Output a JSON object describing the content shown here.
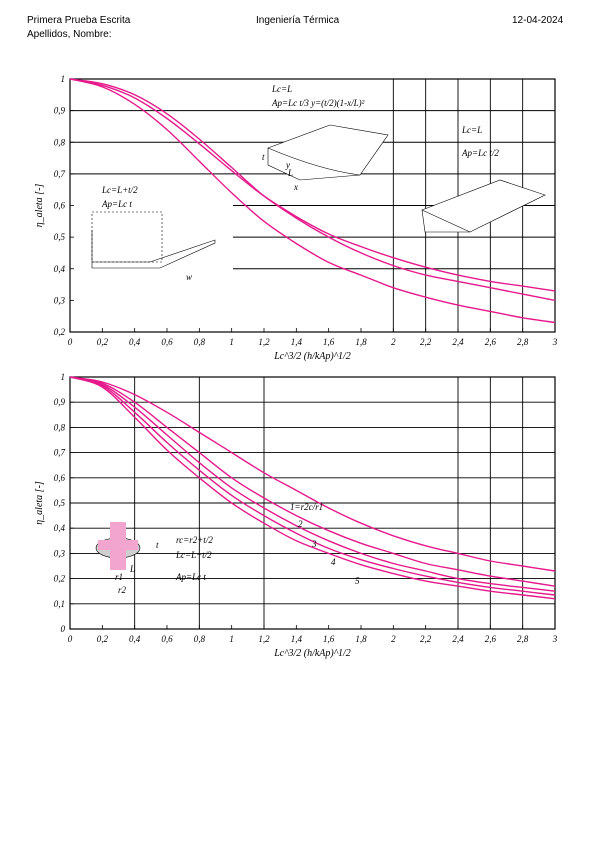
{
  "header": {
    "left_line1": "Primera Prueba Escrita",
    "left_line2": "Apellidos, Nombre:",
    "center": "Ingeniería Térmica",
    "right": "12-04-2024"
  },
  "colors": {
    "curve": "#e6198c",
    "grid": "#000000"
  },
  "chart_data": [
    {
      "type": "line",
      "title": "",
      "xlabel": "Lc^3/2 (h/kAp)^1/2",
      "ylabel": "η_aleta [-]",
      "xlim": [
        0,
        3
      ],
      "ylim": [
        0.2,
        1.0
      ],
      "grid": true,
      "xticks": [
        "0",
        "0,2",
        "0,4",
        "0,6",
        "0,8",
        "1",
        "1,2",
        "1,4",
        "1,6",
        "1,8",
        "2",
        "2,2",
        "2,4",
        "2,6",
        "2,8",
        "3"
      ],
      "yticks": [
        "0,2",
        "0,3",
        "0,4",
        "0,5",
        "0,6",
        "0,7",
        "0,8",
        "0,9",
        "1"
      ],
      "series": [
        {
          "x": [
            0,
            0.2,
            0.4,
            0.6,
            0.8,
            1.0,
            1.2,
            1.4,
            1.6,
            1.8,
            2.0,
            2.2,
            2.4,
            2.6,
            2.8,
            3.0
          ],
          "y": [
            1.0,
            0.985,
            0.95,
            0.89,
            0.81,
            0.72,
            0.63,
            0.56,
            0.5,
            0.45,
            0.41,
            0.38,
            0.36,
            0.34,
            0.32,
            0.3
          ]
        },
        {
          "x": [
            0,
            0.2,
            0.4,
            0.6,
            0.8,
            1.0,
            1.2,
            1.4,
            1.6,
            1.8,
            2.0,
            2.2,
            2.4,
            2.6,
            2.8,
            3.0
          ],
          "y": [
            1.0,
            0.98,
            0.94,
            0.875,
            0.795,
            0.71,
            0.63,
            0.565,
            0.51,
            0.47,
            0.435,
            0.405,
            0.38,
            0.36,
            0.345,
            0.33
          ]
        },
        {
          "x": [
            0,
            0.2,
            0.4,
            0.6,
            0.8,
            1.0,
            1.2,
            1.4,
            1.6,
            1.8,
            2.0,
            2.2,
            2.4,
            2.6,
            2.8,
            3.0
          ],
          "y": [
            1.0,
            0.975,
            0.92,
            0.84,
            0.74,
            0.64,
            0.55,
            0.48,
            0.42,
            0.38,
            0.34,
            0.31,
            0.285,
            0.265,
            0.245,
            0.23
          ]
        }
      ],
      "annotations": [
        {
          "text": "Lc=L"
        },
        {
          "text": "Ap=Lc t/3   y=(t/2)(1-x/L)²"
        },
        {
          "text": "Lc=L+t/2"
        },
        {
          "text": "Ap=Lc t"
        },
        {
          "text": "Lc=L"
        },
        {
          "text": "Ap=Lc t/2"
        },
        {
          "text": "L"
        },
        {
          "text": "t"
        },
        {
          "text": "w"
        },
        {
          "text": "x"
        },
        {
          "text": "y"
        }
      ]
    },
    {
      "type": "line",
      "title": "",
      "xlabel": "Lc^3/2 (h/kAp)^1/2",
      "ylabel": "η_aleta [-]",
      "xlim": [
        0,
        3
      ],
      "ylim": [
        0,
        1.0
      ],
      "grid": true,
      "xticks": [
        "0",
        "0,2",
        "0,4",
        "0,6",
        "0,8",
        "1",
        "1,2",
        "1,4",
        "1,6",
        "1,8",
        "2",
        "2,2",
        "2,4",
        "2,6",
        "2,8",
        "3"
      ],
      "yticks": [
        "0",
        "0,1",
        "0,2",
        "0,3",
        "0,4",
        "0,5",
        "0,6",
        "0,7",
        "0,8",
        "0,9",
        "1"
      ],
      "series": [
        {
          "name": "1",
          "x": [
            0,
            0.2,
            0.4,
            0.6,
            0.8,
            1.0,
            1.2,
            1.4,
            1.6,
            1.8,
            2.0,
            2.2,
            2.4,
            2.6,
            2.8,
            3.0
          ],
          "y": [
            1.0,
            0.98,
            0.93,
            0.86,
            0.78,
            0.7,
            0.62,
            0.55,
            0.48,
            0.42,
            0.37,
            0.33,
            0.3,
            0.27,
            0.25,
            0.23
          ]
        },
        {
          "name": "2",
          "x": [
            0,
            0.2,
            0.4,
            0.6,
            0.8,
            1.0,
            1.2,
            1.4,
            1.6,
            1.8,
            2.0,
            2.2,
            2.4,
            2.6,
            2.8,
            3.0
          ],
          "y": [
            1.0,
            0.975,
            0.9,
            0.8,
            0.7,
            0.6,
            0.52,
            0.45,
            0.39,
            0.34,
            0.3,
            0.26,
            0.235,
            0.21,
            0.19,
            0.17
          ]
        },
        {
          "name": "3",
          "x": [
            0,
            0.2,
            0.4,
            0.6,
            0.8,
            1.0,
            1.2,
            1.4,
            1.6,
            1.8,
            2.0,
            2.2,
            2.4,
            2.6,
            2.8,
            3.0
          ],
          "y": [
            1.0,
            0.97,
            0.88,
            0.77,
            0.66,
            0.56,
            0.48,
            0.41,
            0.35,
            0.3,
            0.26,
            0.23,
            0.2,
            0.18,
            0.165,
            0.15
          ]
        },
        {
          "name": "4",
          "x": [
            0,
            0.2,
            0.4,
            0.6,
            0.8,
            1.0,
            1.2,
            1.4,
            1.6,
            1.8,
            2.0,
            2.2,
            2.4,
            2.6,
            2.8,
            3.0
          ],
          "y": [
            1.0,
            0.965,
            0.86,
            0.74,
            0.63,
            0.53,
            0.45,
            0.38,
            0.32,
            0.275,
            0.24,
            0.21,
            0.185,
            0.165,
            0.15,
            0.135
          ]
        },
        {
          "name": "5",
          "x": [
            0,
            0.2,
            0.4,
            0.6,
            0.8,
            1.0,
            1.2,
            1.4,
            1.6,
            1.8,
            2.0,
            2.2,
            2.4,
            2.6,
            2.8,
            3.0
          ],
          "y": [
            1.0,
            0.96,
            0.84,
            0.71,
            0.6,
            0.5,
            0.42,
            0.35,
            0.3,
            0.255,
            0.22,
            0.19,
            0.17,
            0.15,
            0.135,
            0.12
          ]
        }
      ],
      "annotations": [
        {
          "text": "1=r2c/r1"
        },
        {
          "text": "rc=r2+t/2"
        },
        {
          "text": "Lc=L+t/2"
        },
        {
          "text": "Ap=Lc t"
        },
        {
          "text": "t"
        },
        {
          "text": "L"
        },
        {
          "text": "r1"
        },
        {
          "text": "r2"
        }
      ]
    }
  ]
}
